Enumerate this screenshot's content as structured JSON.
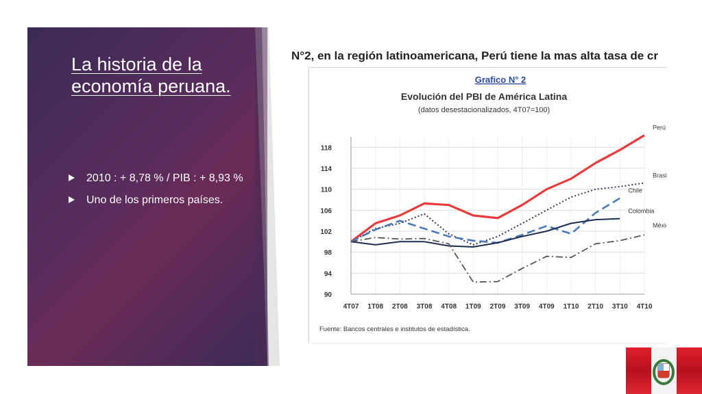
{
  "slide": {
    "title": "La historia de la economía peruana.",
    "bullets": [
      "2010 : + 8,78 % / PIB : + 8,93 %",
      "Uno de los primeros países."
    ]
  },
  "figure": {
    "heading": "N°2, en la región latinoamericana, Perú tiene la mas alta tasa de cr",
    "source": "Fuente: Bancos centrales e institutos de estadística."
  },
  "chart_data": {
    "type": "line",
    "label": "Grafico N° 2",
    "title": "Evolución del PBI de América Latina",
    "subtitle": "(datos desestacionalizados, 4T07=100)",
    "categories": [
      "4T07",
      "1T08",
      "2T08",
      "3T08",
      "4T08",
      "1T09",
      "2T09",
      "3T09",
      "4T09",
      "1T10",
      "2T10",
      "3T10",
      "4T10"
    ],
    "ylim": [
      90,
      120
    ],
    "yticks": [
      90,
      94,
      98,
      102,
      106,
      110,
      114,
      118
    ],
    "grid": true,
    "series": [
      {
        "name": "Perú",
        "color": "#e8393b",
        "style": "solid",
        "values": [
          100,
          103.5,
          105,
          107.3,
          107,
          105,
          104.5,
          107,
          110,
          112,
          115,
          117.5,
          120.3
        ]
      },
      {
        "name": "Brasil",
        "color": "#2f3a55",
        "style": "dotted",
        "values": [
          100,
          102.5,
          103.5,
          105.3,
          101.5,
          99.4,
          101,
          103.5,
          106,
          108.5,
          110,
          110.5,
          111.2
        ]
      },
      {
        "name": "Chile",
        "color": "#4a78b5",
        "style": "dashed",
        "values": [
          100,
          102.3,
          104,
          102.5,
          101,
          100.2,
          99.8,
          101.3,
          103,
          101.5,
          105.5,
          108.3,
          null
        ]
      },
      {
        "name": "Colombia",
        "color": "#1c2d52",
        "style": "solid",
        "values": [
          100,
          99.4,
          100,
          100,
          99.2,
          99,
          99.8,
          101,
          102,
          103.5,
          104.2,
          104.4,
          null
        ]
      },
      {
        "name": "México",
        "color": "#555555",
        "style": "dashdot",
        "values": [
          100,
          100.8,
          100.5,
          100.6,
          99.6,
          92.3,
          92.4,
          94.9,
          97.2,
          97,
          99.6,
          100.2,
          101.3
        ]
      }
    ]
  }
}
